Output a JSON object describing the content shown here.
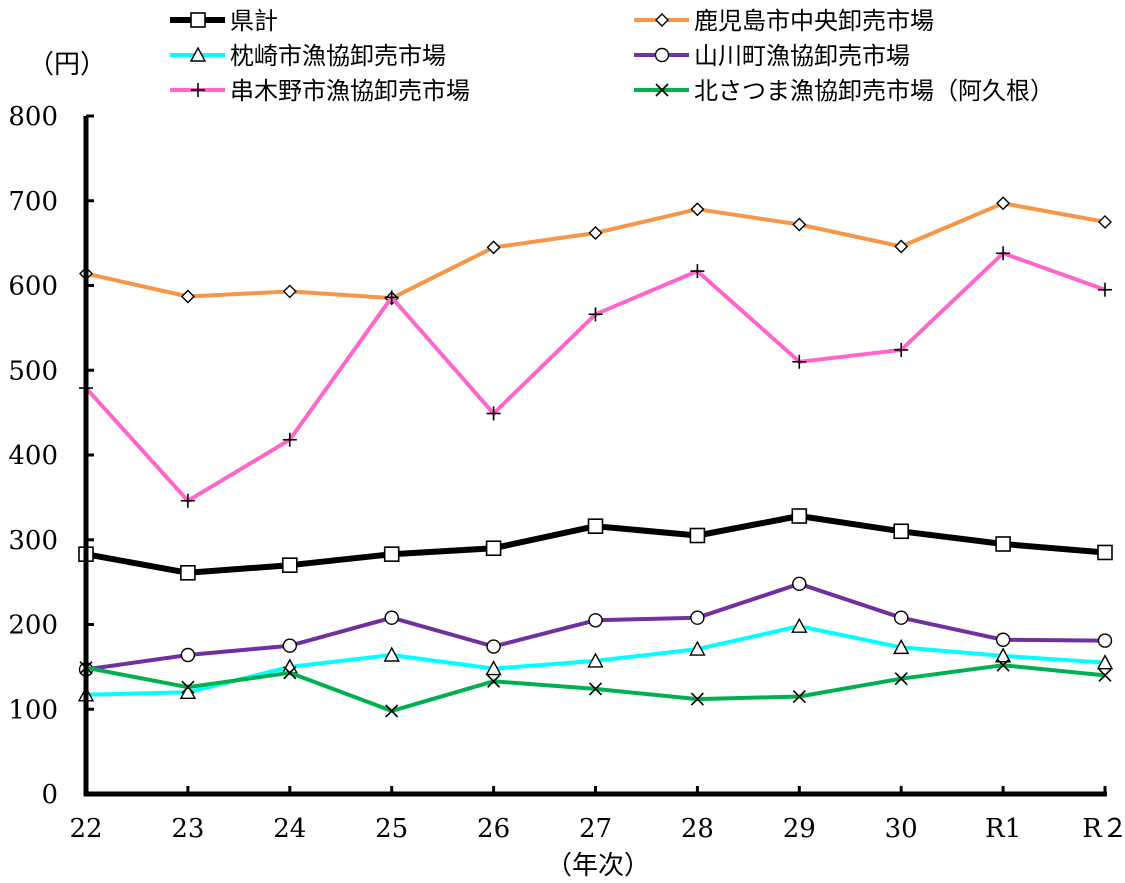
{
  "chart_data": {
    "type": "line",
    "unit_label": "（円）",
    "xlabel": "（年次）",
    "ylim": [
      0,
      800
    ],
    "y_ticks": [
      "0",
      "100",
      "200",
      "300",
      "400",
      "500",
      "600",
      "700",
      "800"
    ],
    "categories": [
      "22",
      "23",
      "24",
      "25",
      "26",
      "27",
      "28",
      "29",
      "30",
      "R1",
      "R２"
    ],
    "grid": false,
    "legend_position": "top",
    "series": [
      {
        "name": "県計",
        "color": "#000000",
        "marker": "square",
        "values": [
          283,
          261,
          270,
          283,
          290,
          316,
          305,
          328,
          310,
          295,
          285
        ]
      },
      {
        "name": "鹿児島市中央卸売市場",
        "color": "#F79646",
        "marker": "diamond",
        "values": [
          614,
          587,
          593,
          585,
          645,
          662,
          690,
          672,
          646,
          697,
          675
        ]
      },
      {
        "name": "枕崎市漁協卸売市場",
        "color": "#00FFFF",
        "marker": "triangle",
        "values": [
          117,
          120,
          150,
          164,
          148,
          157,
          171,
          198,
          173,
          163,
          155
        ]
      },
      {
        "name": "山川町漁協卸売市場",
        "color": "#7030A0",
        "marker": "circle",
        "values": [
          147,
          164,
          175,
          208,
          174,
          205,
          208,
          248,
          208,
          182,
          181
        ]
      },
      {
        "name": "串木野市漁協卸売市場",
        "color": "#FF66CC",
        "marker": "plus",
        "values": [
          479,
          346,
          418,
          586,
          449,
          566,
          617,
          510,
          524,
          638,
          595
        ]
      },
      {
        "name": "北さつま漁協卸売市場（阿久根）",
        "color": "#00B050",
        "marker": "x",
        "values": [
          149,
          126,
          143,
          98,
          133,
          124,
          112,
          115,
          136,
          152,
          140
        ]
      }
    ]
  }
}
